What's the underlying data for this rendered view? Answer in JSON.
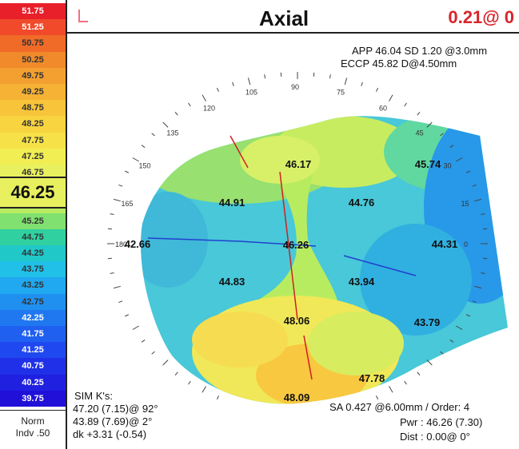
{
  "header": {
    "title": "Axial",
    "cursor_readout": "0.21@ 0"
  },
  "scale": {
    "labels": [
      "51.75",
      "51.25",
      "50.75",
      "50.25",
      "49.75",
      "49.25",
      "48.75",
      "48.25",
      "47.75",
      "47.25",
      "46.75",
      "46.25",
      "45.75",
      "45.25",
      "44.75",
      "44.25",
      "43.75",
      "43.25",
      "42.75",
      "42.25",
      "41.75",
      "41.25",
      "40.75",
      "40.25",
      "39.75"
    ],
    "colors": [
      "#e8202a",
      "#f04a2a",
      "#f06a28",
      "#f08a2a",
      "#f4a030",
      "#f6b234",
      "#f8c43a",
      "#f8d440",
      "#f6e248",
      "#f0ee52",
      "#e8f060",
      "#d8f070",
      "#b8ec60",
      "#80e070",
      "#30d0a0",
      "#20c8c8",
      "#20c0e8",
      "#20a8f0",
      "#2090f0",
      "#2078f0",
      "#2060f0",
      "#2048f0",
      "#2030e8",
      "#2020e0",
      "#2010d8"
    ],
    "current_value": "46.25",
    "current_color": "#e8f060",
    "footer_line1": "Norm",
    "footer_line2": "Indv .50"
  },
  "info": {
    "app_line": "APP 46.04  SD 1.20  @3.0mm",
    "eccp_line": "ECCP 45.82  D@4.50mm",
    "sim_title": "SIM K's:",
    "sim_k1": "47.20 (7.15)@ 92°",
    "sim_k2": "43.89 (7.69)@ 2°",
    "sim_dk": "dk +3.31 (-0.54)",
    "sa_line": "SA  0.427 @6.00mm / Order: 4",
    "pwr_line": "Pwr :  46.26 (7.30)",
    "dist_line": "Dist :  0.00@  0°"
  },
  "map": {
    "values": [
      {
        "label": "46.17",
        "angle": 90,
        "ring": "inner"
      },
      {
        "label": "45.74",
        "angle": 45,
        "ring": "outer"
      },
      {
        "label": "44.91",
        "angle": 135,
        "ring": "inner"
      },
      {
        "label": "44.76",
        "angle": 45,
        "ring": "inner"
      },
      {
        "label": "42.66",
        "angle": 180,
        "ring": "outer"
      },
      {
        "label": "46.26",
        "angle": 0,
        "ring": "center"
      },
      {
        "label": "44.31",
        "angle": 0,
        "ring": "outer"
      },
      {
        "label": "44.83",
        "angle": 225,
        "ring": "inner"
      },
      {
        "label": "43.94",
        "angle": 315,
        "ring": "inner"
      },
      {
        "label": "48.06",
        "angle": 270,
        "ring": "inner"
      },
      {
        "label": "43.79",
        "angle": 315,
        "ring": "outer"
      },
      {
        "label": "47.78",
        "angle": 300,
        "ring": "outer"
      },
      {
        "label": "48.09",
        "angle": 270,
        "ring": "outer"
      }
    ],
    "tick_labels": [
      "165",
      "150",
      "135",
      "120",
      "105",
      "90",
      "75",
      "60",
      "45",
      "30",
      "15",
      "0",
      "180"
    ]
  }
}
